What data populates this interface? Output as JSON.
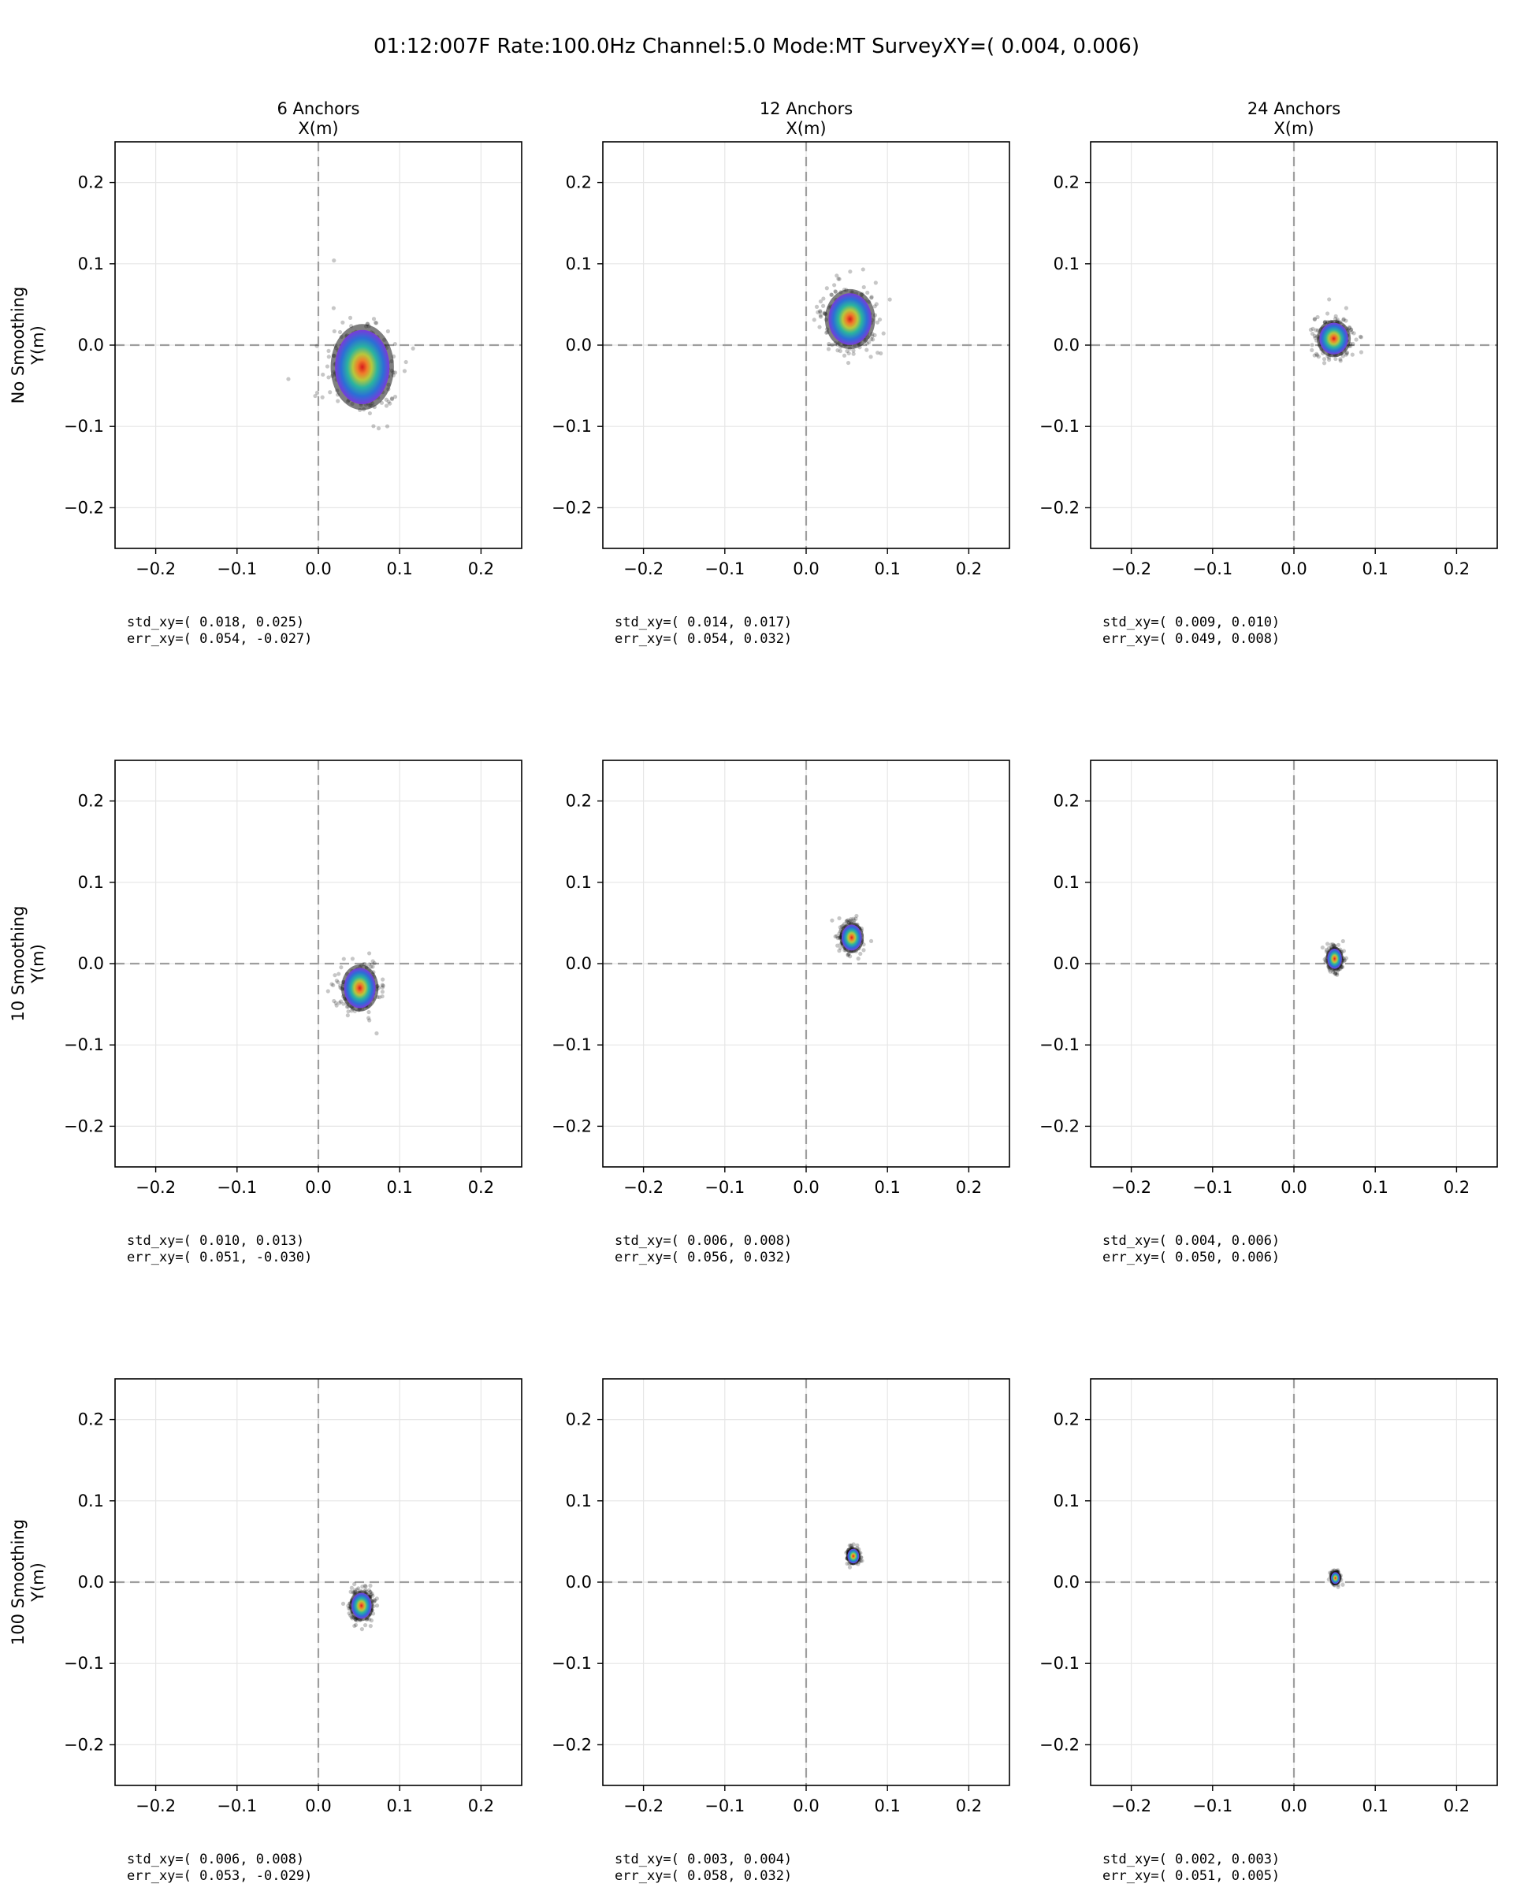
{
  "figure": {
    "title": "01:12:007F  Rate:100.0Hz  Channel:5.0  Mode:MT SurveyXY=( 0.004,  0.006)"
  },
  "columns": [
    {
      "label": "6 Anchors",
      "xlabel": "X(m)"
    },
    {
      "label": "12 Anchors",
      "xlabel": "X(m)"
    },
    {
      "label": "24 Anchors",
      "xlabel": "X(m)"
    }
  ],
  "rows": [
    {
      "label": "No Smoothing",
      "ylabel": "Y(m)"
    },
    {
      "label": "10 Smoothing",
      "ylabel": "Y(m)"
    },
    {
      "label": "100 Smoothing",
      "ylabel": "Y(m)"
    }
  ],
  "chart_data": [
    {
      "type": "scatter",
      "row": 0,
      "col": 0,
      "xlim": [
        -0.25,
        0.25
      ],
      "ylim": [
        -0.25,
        0.25
      ],
      "xticks": [
        -0.2,
        -0.1,
        0.0,
        0.1,
        0.2
      ],
      "yticks": [
        -0.2,
        -0.1,
        0.0,
        0.1,
        0.2
      ],
      "grid": true,
      "center": [
        0.054,
        -0.027
      ],
      "std": [
        0.018,
        0.025
      ],
      "std_text": "std_xy=( 0.018,  0.025)",
      "err_text": "err_xy=( 0.054, -0.027)"
    },
    {
      "type": "scatter",
      "row": 0,
      "col": 1,
      "xlim": [
        -0.25,
        0.25
      ],
      "ylim": [
        -0.25,
        0.25
      ],
      "xticks": [
        -0.2,
        -0.1,
        0.0,
        0.1,
        0.2
      ],
      "yticks": [
        -0.2,
        -0.1,
        0.0,
        0.1,
        0.2
      ],
      "grid": true,
      "center": [
        0.054,
        0.032
      ],
      "std": [
        0.014,
        0.017
      ],
      "std_text": "std_xy=( 0.014,  0.017)",
      "err_text": "err_xy=( 0.054,  0.032)"
    },
    {
      "type": "scatter",
      "row": 0,
      "col": 2,
      "xlim": [
        -0.25,
        0.25
      ],
      "ylim": [
        -0.25,
        0.25
      ],
      "xticks": [
        -0.2,
        -0.1,
        0.0,
        0.1,
        0.2
      ],
      "yticks": [
        -0.2,
        -0.1,
        0.0,
        0.1,
        0.2
      ],
      "grid": true,
      "center": [
        0.049,
        0.008
      ],
      "std": [
        0.009,
        0.01
      ],
      "std_text": "std_xy=( 0.009,  0.010)",
      "err_text": "err_xy=( 0.049,  0.008)"
    },
    {
      "type": "scatter",
      "row": 1,
      "col": 0,
      "xlim": [
        -0.25,
        0.25
      ],
      "ylim": [
        -0.25,
        0.25
      ],
      "xticks": [
        -0.2,
        -0.1,
        0.0,
        0.1,
        0.2
      ],
      "yticks": [
        -0.2,
        -0.1,
        0.0,
        0.1,
        0.2
      ],
      "grid": true,
      "center": [
        0.051,
        -0.03
      ],
      "std": [
        0.01,
        0.013
      ],
      "std_text": "std_xy=( 0.010,  0.013)",
      "err_text": "err_xy=( 0.051, -0.030)"
    },
    {
      "type": "scatter",
      "row": 1,
      "col": 1,
      "xlim": [
        -0.25,
        0.25
      ],
      "ylim": [
        -0.25,
        0.25
      ],
      "xticks": [
        -0.2,
        -0.1,
        0.0,
        0.1,
        0.2
      ],
      "yticks": [
        -0.2,
        -0.1,
        0.0,
        0.1,
        0.2
      ],
      "grid": true,
      "center": [
        0.056,
        0.032
      ],
      "std": [
        0.006,
        0.008
      ],
      "std_text": "std_xy=( 0.006,  0.008)",
      "err_text": "err_xy=( 0.056,  0.032)"
    },
    {
      "type": "scatter",
      "row": 1,
      "col": 2,
      "xlim": [
        -0.25,
        0.25
      ],
      "ylim": [
        -0.25,
        0.25
      ],
      "xticks": [
        -0.2,
        -0.1,
        0.0,
        0.1,
        0.2
      ],
      "yticks": [
        -0.2,
        -0.1,
        0.0,
        0.1,
        0.2
      ],
      "grid": true,
      "center": [
        0.05,
        0.006
      ],
      "std": [
        0.004,
        0.006
      ],
      "std_text": "std_xy=( 0.004,  0.006)",
      "err_text": "err_xy=( 0.050,  0.006)"
    },
    {
      "type": "scatter",
      "row": 2,
      "col": 0,
      "xlim": [
        -0.25,
        0.25
      ],
      "ylim": [
        -0.25,
        0.25
      ],
      "xticks": [
        -0.2,
        -0.1,
        0.0,
        0.1,
        0.2
      ],
      "yticks": [
        -0.2,
        -0.1,
        0.0,
        0.1,
        0.2
      ],
      "grid": true,
      "center": [
        0.053,
        -0.029
      ],
      "std": [
        0.006,
        0.008
      ],
      "std_text": "std_xy=( 0.006,  0.008)",
      "err_text": "err_xy=( 0.053, -0.029)"
    },
    {
      "type": "scatter",
      "row": 2,
      "col": 1,
      "xlim": [
        -0.25,
        0.25
      ],
      "ylim": [
        -0.25,
        0.25
      ],
      "xticks": [
        -0.2,
        -0.1,
        0.0,
        0.1,
        0.2
      ],
      "yticks": [
        -0.2,
        -0.1,
        0.0,
        0.1,
        0.2
      ],
      "grid": true,
      "center": [
        0.058,
        0.032
      ],
      "std": [
        0.003,
        0.004
      ],
      "std_text": "std_xy=( 0.003,  0.004)",
      "err_text": "err_xy=( 0.058,  0.032)"
    },
    {
      "type": "scatter",
      "row": 2,
      "col": 2,
      "xlim": [
        -0.25,
        0.25
      ],
      "ylim": [
        -0.25,
        0.25
      ],
      "xticks": [
        -0.2,
        -0.1,
        0.0,
        0.1,
        0.2
      ],
      "yticks": [
        -0.2,
        -0.1,
        0.0,
        0.1,
        0.2
      ],
      "grid": true,
      "center": [
        0.051,
        0.005
      ],
      "std": [
        0.002,
        0.003
      ],
      "std_text": "std_xy=( 0.002,  0.003)",
      "err_text": "err_xy=( 0.051,  0.005)"
    }
  ]
}
